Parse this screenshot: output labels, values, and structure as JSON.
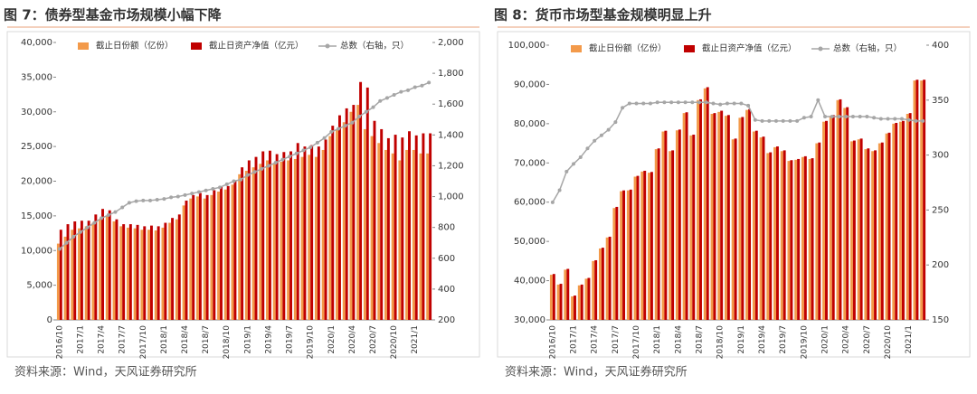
{
  "chart_data": [
    {
      "type": "bar",
      "title": "图 7：债券型基金市场规模小幅下降",
      "source": "资料来源：Wind，天风证券研究所",
      "categories": [
        "2016/10",
        null,
        null,
        "2017/1",
        null,
        null,
        "2017/4",
        null,
        null,
        "2017/7",
        null,
        null,
        "2017/10",
        null,
        null,
        "2018/1",
        null,
        null,
        "2018/4",
        null,
        null,
        "2018/7",
        null,
        null,
        "2018/10",
        null,
        null,
        "2019/1",
        null,
        null,
        "2019/4",
        null,
        null,
        "2019/7",
        null,
        null,
        "2019/10",
        null,
        null,
        "2020/1",
        null,
        null,
        "2020/4",
        null,
        null,
        "2020/7",
        null,
        null,
        "2020/10",
        null,
        null,
        "2021/1",
        null,
        null
      ],
      "series": [
        {
          "name": "截止日份额（亿份）",
          "color": "#f39a4a",
          "values": [
            11000,
            12000,
            13000,
            13200,
            13500,
            14000,
            14500,
            15000,
            14200,
            13500,
            13300,
            13200,
            13000,
            13000,
            12900,
            13300,
            14000,
            14500,
            16500,
            17500,
            17800,
            17500,
            18000,
            18500,
            18800,
            19500,
            21000,
            21500,
            22000,
            22500,
            23000,
            22500,
            22800,
            23000,
            23200,
            23500,
            23800,
            23500,
            24500,
            26500,
            27500,
            28500,
            30000,
            31000,
            27500,
            26500,
            25500,
            24500,
            24000,
            23000,
            24500,
            24500,
            24000,
            24000
          ]
        },
        {
          "name": "截止日资产净值（亿元）",
          "color": "#c00000",
          "values": [
            13000,
            13800,
            14200,
            14300,
            14300,
            15200,
            16000,
            15800,
            14500,
            13800,
            13800,
            13700,
            13500,
            13600,
            13500,
            14000,
            14700,
            15200,
            17200,
            18000,
            18300,
            18000,
            18700,
            19200,
            19300,
            20000,
            22000,
            23000,
            23500,
            24300,
            24400,
            23900,
            24200,
            24300,
            25500,
            25000,
            25200,
            25000,
            26000,
            28000,
            29500,
            30500,
            31000,
            34300,
            33500,
            28700,
            27500,
            26200,
            26700,
            26300,
            27200,
            26600,
            26900,
            26900
          ]
        },
        {
          "name": "总数（右轴，只）",
          "color": "#a6a6a6",
          "axis": "y2",
          "values": [
            660,
            700,
            740,
            770,
            800,
            830,
            860,
            880,
            900,
            930,
            960,
            970,
            975,
            975,
            980,
            985,
            995,
            1000,
            1010,
            1020,
            1030,
            1040,
            1050,
            1060,
            1080,
            1100,
            1110,
            1140,
            1160,
            1180,
            1200,
            1220,
            1240,
            1260,
            1280,
            1300,
            1320,
            1350,
            1380,
            1420,
            1440,
            1460,
            1480,
            1520,
            1550,
            1580,
            1620,
            1640,
            1660,
            1680,
            1690,
            1710,
            1720,
            1740
          ]
        }
      ],
      "ylim": [
        0,
        40000
      ],
      "yticks": [
        0,
        {
          "value": 5000,
          "label": "5,000"
        },
        {
          "value": 10000,
          "label": "10,000"
        },
        {
          "value": 15000,
          "label": "15,000"
        },
        {
          "value": 20000,
          "label": "20,000"
        },
        {
          "value": 25000,
          "label": "25,000"
        },
        {
          "value": 30000,
          "label": "30,000"
        },
        {
          "value": 35000,
          "label": "35,000"
        },
        {
          "value": 40000,
          "label": "40,000"
        }
      ],
      "y2lim": [
        200,
        2000
      ],
      "y2ticks": [
        200,
        400,
        600,
        800,
        {
          "value": 1000,
          "label": "1,000"
        },
        {
          "value": 1200,
          "label": "1,200"
        },
        {
          "value": 1400,
          "label": "1,400"
        },
        {
          "value": 1600,
          "label": "1,600"
        },
        {
          "value": 1800,
          "label": "1,800"
        },
        {
          "value": 2000,
          "label": "2,000"
        }
      ]
    },
    {
      "type": "bar",
      "title": "图 8：货币市场型基金规模明显上升",
      "source": "资料来源：Wind，天风证券研究所",
      "categories": [
        "2016/10",
        null,
        null,
        "2017/1",
        null,
        null,
        "2017/4",
        null,
        null,
        "2017/7",
        null,
        null,
        "2017/10",
        null,
        null,
        "2018/1",
        null,
        null,
        "2018/4",
        null,
        null,
        "2018/7",
        null,
        null,
        "2018/10",
        null,
        null,
        "2019/1",
        null,
        null,
        "2019/4",
        null,
        null,
        "2019/7",
        null,
        null,
        "2019/10",
        null,
        null,
        "2020/1",
        null,
        null,
        "2020/4",
        null,
        null,
        "2020/7",
        null,
        null,
        "2020/10",
        null,
        null,
        "2021/1",
        null,
        null
      ],
      "series": [
        {
          "name": "截止日份额（亿份）",
          "color": "#f39a4a",
          "values": [
            41500,
            39000,
            42800,
            36000,
            38800,
            40500,
            45000,
            48200,
            51000,
            58500,
            62800,
            63000,
            66500,
            67800,
            67500,
            73500,
            78000,
            73000,
            78300,
            82700,
            77000,
            86000,
            89000,
            82500,
            83000,
            82000,
            76000,
            81500,
            83500,
            78000,
            76500,
            72500,
            74000,
            73000,
            70500,
            70800,
            71500,
            71000,
            75000,
            80500,
            82000,
            86000,
            84000,
            75500,
            76000,
            73500,
            73000,
            75000,
            77500,
            80000,
            80500,
            82500,
            91000,
            91000
          ]
        },
        {
          "name": "截止日资产净值（亿元）",
          "color": "#c00000",
          "values": [
            41700,
            39200,
            43000,
            36200,
            39000,
            40700,
            45200,
            48400,
            51200,
            58800,
            63000,
            63200,
            66700,
            68000,
            67700,
            73700,
            78200,
            73200,
            78500,
            82900,
            77200,
            86200,
            89300,
            82700,
            83300,
            82200,
            76200,
            81700,
            83700,
            78200,
            76700,
            72700,
            74200,
            73200,
            70700,
            71000,
            71700,
            71200,
            75200,
            80700,
            82200,
            86200,
            84200,
            75700,
            76200,
            73700,
            73200,
            75200,
            77700,
            80200,
            80700,
            82700,
            91200,
            91200
          ]
        },
        {
          "name": "总数（右轴，只）",
          "color": "#a6a6a6",
          "axis": "y2",
          "values": [
            257,
            268,
            285,
            292,
            298,
            306,
            313,
            318,
            323,
            330,
            343,
            347,
            347,
            347,
            347,
            348,
            348,
            348,
            348,
            348,
            348,
            348,
            348,
            347,
            346,
            347,
            347,
            347,
            345,
            332,
            331,
            331,
            331,
            331,
            331,
            331,
            334,
            335,
            350,
            335,
            335,
            335,
            335,
            335,
            335,
            335,
            334,
            333,
            333,
            333,
            333,
            332,
            331,
            331
          ]
        }
      ],
      "ylim": [
        30000,
        100000
      ],
      "yticks": [
        {
          "value": 30000,
          "label": "30,000"
        },
        {
          "value": 40000,
          "label": "40,000"
        },
        {
          "value": 50000,
          "label": "50,000"
        },
        {
          "value": 60000,
          "label": "60,000"
        },
        {
          "value": 70000,
          "label": "70,000"
        },
        {
          "value": 80000,
          "label": "80,000"
        },
        {
          "value": 90000,
          "label": "90,000"
        },
        {
          "value": 100000,
          "label": "100,000"
        }
      ],
      "y2lim": [
        150,
        400
      ],
      "y2ticks": [
        150,
        200,
        250,
        300,
        350,
        400
      ]
    }
  ]
}
